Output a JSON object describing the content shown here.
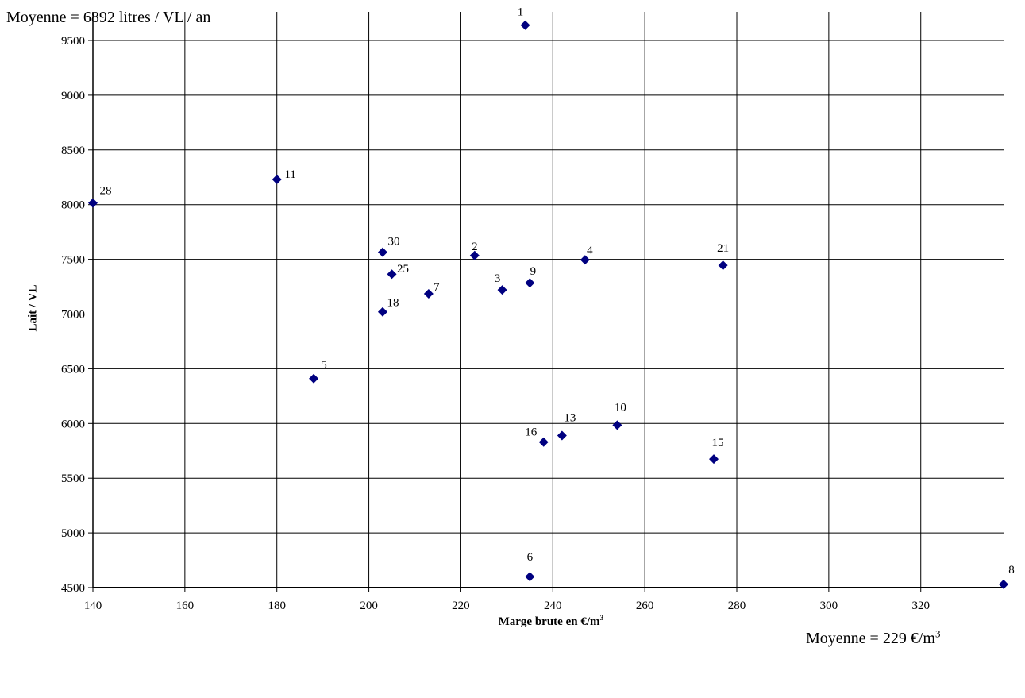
{
  "annotations": {
    "avg_y": "Moyenne = 6892 litres / VL / an",
    "avg_x_prefix": "Moyenne = 229 €/m",
    "avg_x_sup": "3"
  },
  "chart_data": {
    "type": "scatter",
    "xlabel_prefix": "Marge brute en €/m",
    "xlabel_sup": "3",
    "ylabel": "Lait / VL",
    "xlim": [
      140,
      338
    ],
    "ylim": [
      4500,
      9700
    ],
    "xticks": [
      140,
      160,
      180,
      200,
      220,
      240,
      260,
      280,
      300,
      320
    ],
    "yticks": [
      4500,
      5000,
      5500,
      6000,
      6500,
      7000,
      7500,
      8000,
      8500,
      9000,
      9500
    ],
    "grid": true,
    "marker_color": "#000080",
    "points": [
      {
        "label": "1",
        "x": 234,
        "y": 9640
      },
      {
        "label": "2",
        "x": 223,
        "y": 7535
      },
      {
        "label": "3",
        "x": 229,
        "y": 7220
      },
      {
        "label": "4",
        "x": 247,
        "y": 7495
      },
      {
        "label": "5",
        "x": 188,
        "y": 6410
      },
      {
        "label": "6",
        "x": 235,
        "y": 4600
      },
      {
        "label": "7",
        "x": 213,
        "y": 7185
      },
      {
        "label": "8",
        "x": 338,
        "y": 4530
      },
      {
        "label": "9",
        "x": 235,
        "y": 7285
      },
      {
        "label": "10",
        "x": 254,
        "y": 5985
      },
      {
        "label": "11",
        "x": 180,
        "y": 8230
      },
      {
        "label": "13",
        "x": 242,
        "y": 5890
      },
      {
        "label": "15",
        "x": 275,
        "y": 5675
      },
      {
        "label": "16",
        "x": 238,
        "y": 5830
      },
      {
        "label": "18",
        "x": 203,
        "y": 7020
      },
      {
        "label": "21",
        "x": 277,
        "y": 7445
      },
      {
        "label": "25",
        "x": 205,
        "y": 7365
      },
      {
        "label": "28",
        "x": 140,
        "y": 8015
      },
      {
        "label": "30",
        "x": 203,
        "y": 7565
      }
    ]
  }
}
